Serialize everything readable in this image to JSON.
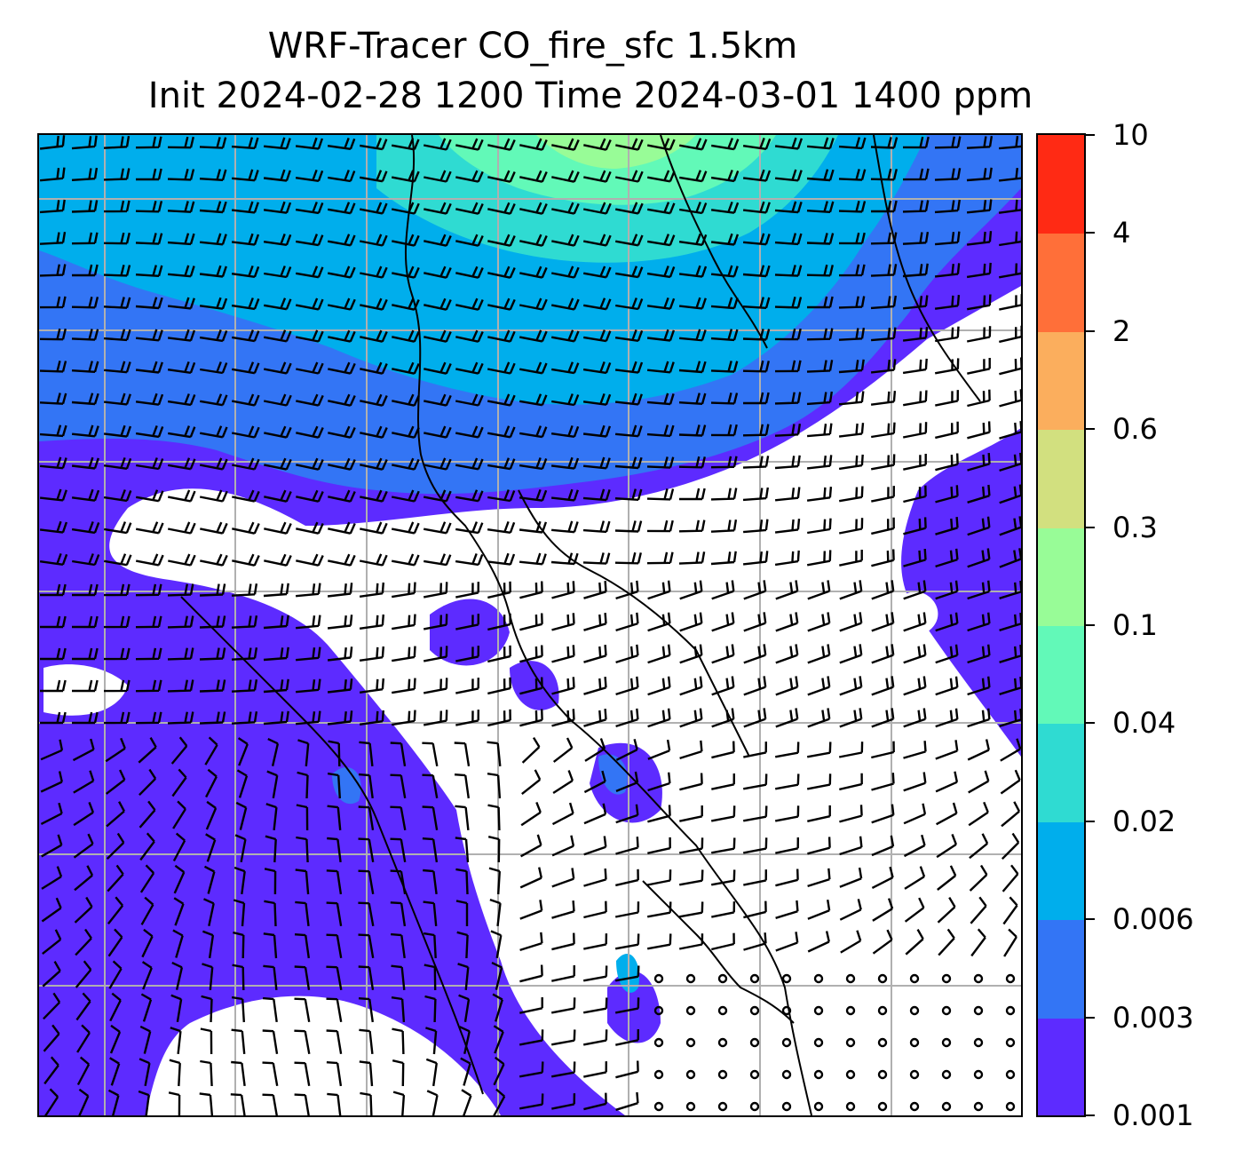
{
  "title": {
    "line1": "WRF-Tracer CO_fire_sfc 1.5km",
    "line2": "Init 2024-02-28 1200 Time 2024-03-01 1400 ppm"
  },
  "map": {
    "variable": "CO_fire_sfc",
    "units": "ppm",
    "overlay": "wind barbs",
    "gridlines": true,
    "coastlines": true
  },
  "colorbar": {
    "levels": [
      "0.001",
      "0.003",
      "0.006",
      "0.02",
      "0.04",
      "0.1",
      "0.3",
      "0.6",
      "2",
      "4",
      "10"
    ],
    "colors": [
      "#5d2bff",
      "#3375f5",
      "#00aeec",
      "#2fdbd2",
      "#62f9b8",
      "#98fc97",
      "#d2e07f",
      "#fbae5d",
      "#ff6f39",
      "#ff2a14"
    ]
  },
  "colors": {
    "white": "#ffffff",
    "grid": "#b0b0b0",
    "barb": "#000000"
  }
}
